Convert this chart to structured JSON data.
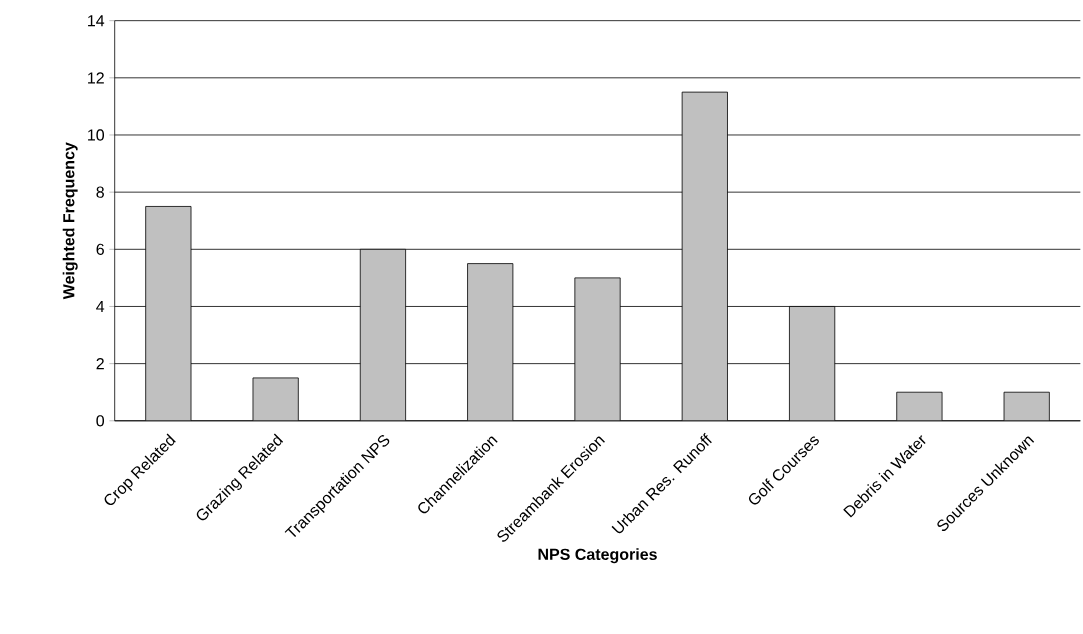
{
  "chart_data": {
    "type": "bar",
    "xlabel": "NPS Categories",
    "ylabel": "Weighted Frequency",
    "categories": [
      "Crop Related",
      "Grazing Related",
      "Transportation NPS",
      "Channelization",
      "Streambank Erosion",
      "Urban Res. Runoff",
      "Golf Courses",
      "Debris in Water",
      "Sources Unknown"
    ],
    "values": [
      7.5,
      1.5,
      6,
      5.5,
      5,
      11.5,
      4,
      1,
      1
    ],
    "color": "#c0c0c0",
    "ylim": [
      0,
      14
    ],
    "yticks": [
      0,
      2,
      4,
      6,
      8,
      10,
      12,
      14
    ],
    "grid": "y"
  }
}
